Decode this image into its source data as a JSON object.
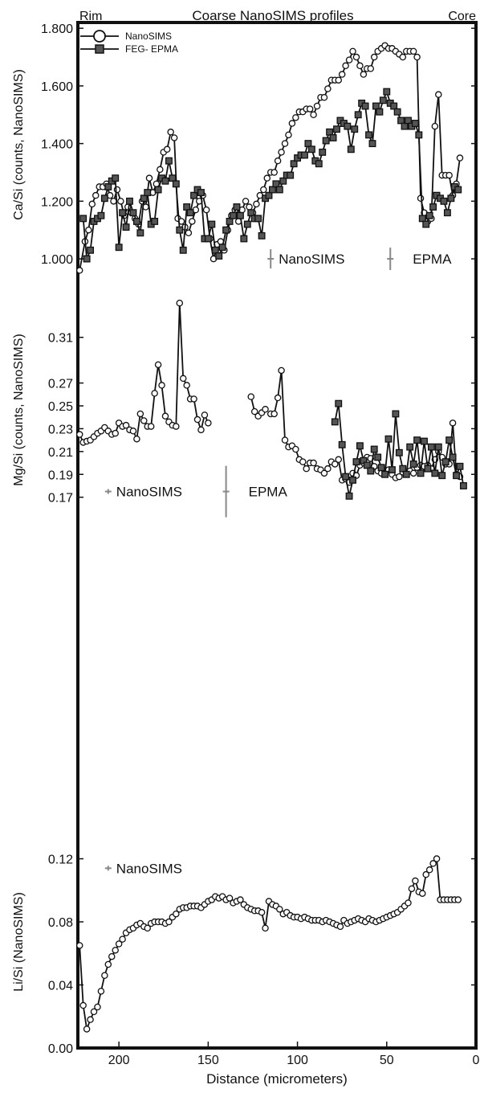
{
  "header": {
    "title": "Coarse NanoSIMS profiles",
    "left_label": "Rim",
    "right_label": "Core"
  },
  "x_axis": {
    "label": "Distance (micrometers)",
    "range": [
      223,
      0
    ],
    "ticks": [
      200,
      150,
      100,
      50,
      0
    ],
    "tick_labels": [
      "200",
      "150",
      "100",
      "50",
      "0"
    ]
  },
  "colors": {
    "axis": "#111111",
    "open_marker_fill": "#ffffff",
    "square_marker_fill": "#555555",
    "error_bar": "#888888"
  },
  "chart_data": [
    {
      "type": "line",
      "panel": "top",
      "ylabel": "Ca/Si (counts, NanoSIMS)",
      "ylim": [
        0.95,
        1.82
      ],
      "yticks": [
        1.0,
        1.2,
        1.4,
        1.6,
        1.8
      ],
      "ytick_labels": [
        "1.000",
        "1.200",
        "1.400",
        "1.600",
        "1.800"
      ],
      "legend": {
        "position": "top-left",
        "entries": [
          "NanoSIMS",
          "FEG- EPMA"
        ]
      },
      "annotations": [
        {
          "text": "NanoSIMS",
          "kind": "error-bar-key",
          "x": 115,
          "y": 1.0
        },
        {
          "text": "EPMA",
          "kind": "error-bar-key",
          "x": 48,
          "y": 1.0
        }
      ],
      "series": [
        {
          "name": "NanoSIMS",
          "marker": "circle",
          "x": [
            222,
            219,
            217,
            215,
            213,
            211,
            209,
            207,
            205,
            203,
            201,
            199,
            197,
            195,
            193,
            191,
            189,
            187,
            185,
            183,
            181,
            179,
            177,
            175,
            173,
            171,
            169,
            167,
            165,
            163,
            161,
            159,
            157,
            155,
            153,
            151,
            149,
            147,
            145,
            143,
            141,
            139,
            137,
            135,
            133,
            131,
            129,
            127,
            125,
            123,
            121,
            119,
            117,
            115,
            113,
            111,
            109,
            107,
            105,
            103,
            101,
            99,
            97,
            95,
            93,
            91,
            89,
            87,
            85,
            83,
            81,
            79,
            77,
            75,
            73,
            71,
            69,
            67,
            65,
            63,
            61,
            59,
            57,
            55,
            53,
            51,
            49,
            47,
            45,
            43,
            41,
            39,
            37,
            35,
            33,
            31,
            29,
            27,
            25,
            23,
            21,
            19,
            17,
            15,
            13,
            11,
            9
          ],
          "y": [
            0.96,
            1.06,
            1.1,
            1.19,
            1.22,
            1.25,
            1.25,
            1.26,
            1.22,
            1.2,
            1.24,
            1.2,
            1.15,
            1.18,
            1.16,
            1.14,
            1.12,
            1.2,
            1.18,
            1.28,
            1.23,
            1.26,
            1.31,
            1.37,
            1.38,
            1.44,
            1.42,
            1.14,
            1.13,
            1.11,
            1.09,
            1.13,
            1.17,
            1.2,
            1.22,
            1.17,
            1.07,
            1.0,
            1.05,
            1.06,
            1.03,
            1.1,
            1.15,
            1.17,
            1.13,
            1.17,
            1.2,
            1.18,
            1.16,
            1.19,
            1.22,
            1.24,
            1.28,
            1.3,
            1.3,
            1.34,
            1.37,
            1.4,
            1.43,
            1.47,
            1.49,
            1.51,
            1.51,
            1.52,
            1.52,
            1.5,
            1.53,
            1.56,
            1.56,
            1.59,
            1.62,
            1.62,
            1.62,
            1.64,
            1.67,
            1.69,
            1.72,
            1.7,
            1.67,
            1.64,
            1.66,
            1.66,
            1.7,
            1.72,
            1.73,
            1.74,
            1.73,
            1.73,
            1.72,
            1.71,
            1.7,
            1.72,
            1.72,
            1.72,
            1.7,
            1.21,
            1.16,
            1.13,
            1.14,
            1.46,
            1.57,
            1.29,
            1.29,
            1.29,
            1.22,
            1.26,
            1.35
          ]
        },
        {
          "name": "FEG- EPMA",
          "marker": "square",
          "x": [
            220,
            218,
            216,
            214,
            212,
            210,
            208,
            206,
            204,
            202,
            200,
            198,
            196,
            194,
            192,
            190,
            188,
            186,
            184,
            182,
            180,
            178,
            176,
            174,
            172,
            170,
            168,
            166,
            164,
            162,
            160,
            158,
            156,
            154,
            152,
            150,
            148,
            146,
            144,
            142,
            140,
            138,
            136,
            134,
            132,
            130,
            128,
            126,
            124,
            122,
            120,
            118,
            116,
            114,
            112,
            110,
            108,
            106,
            104,
            102,
            100,
            98,
            96,
            94,
            92,
            90,
            88,
            86,
            84,
            82,
            80,
            78,
            76,
            74,
            72,
            70,
            68,
            66,
            64,
            62,
            60,
            58,
            56,
            54,
            52,
            50,
            48,
            46,
            44,
            42,
            40,
            38,
            36,
            34,
            32,
            30,
            28,
            26,
            24,
            22,
            20,
            18,
            16,
            14,
            12,
            10
          ],
          "y": [
            1.14,
            1.0,
            1.03,
            1.13,
            1.14,
            1.15,
            1.21,
            1.25,
            1.27,
            1.28,
            1.04,
            1.16,
            1.11,
            1.2,
            1.16,
            1.13,
            1.09,
            1.21,
            1.23,
            1.12,
            1.13,
            1.24,
            1.28,
            1.27,
            1.34,
            1.28,
            1.26,
            1.1,
            1.03,
            1.18,
            1.16,
            1.22,
            1.24,
            1.23,
            1.07,
            1.07,
            1.12,
            1.03,
            1.01,
            1.04,
            1.1,
            1.13,
            1.15,
            1.18,
            1.15,
            1.07,
            1.12,
            1.16,
            1.14,
            1.14,
            1.08,
            1.21,
            1.22,
            1.24,
            1.26,
            1.24,
            1.27,
            1.29,
            1.29,
            1.33,
            1.35,
            1.36,
            1.36,
            1.4,
            1.38,
            1.34,
            1.33,
            1.37,
            1.41,
            1.44,
            1.42,
            1.45,
            1.48,
            1.47,
            1.46,
            1.38,
            1.45,
            1.5,
            1.54,
            1.53,
            1.43,
            1.4,
            1.53,
            1.51,
            1.55,
            1.58,
            1.54,
            1.53,
            1.51,
            1.48,
            1.46,
            1.48,
            1.46,
            1.47,
            1.43,
            1.14,
            1.12,
            1.15,
            1.18,
            1.22,
            1.21,
            1.2,
            1.16,
            1.21,
            1.25,
            1.24
          ]
        }
      ]
    },
    {
      "type": "line",
      "panel": "middle",
      "ylabel": "Mg/Si (counts, NanoSIMS)",
      "ylim": [
        0.155,
        0.345
      ],
      "yticks": [
        0.17,
        0.19,
        0.21,
        0.23,
        0.25,
        0.27,
        0.31
      ],
      "ytick_labels": [
        "0.17",
        "0.19",
        "0.21",
        "0.23",
        "0.25",
        "0.27",
        "0.31"
      ],
      "annotations": [
        {
          "text": "NanoSIMS",
          "kind": "error-bar-key",
          "x": 206,
          "y": 0.175
        },
        {
          "text": "EPMA",
          "kind": "error-bar-key",
          "x": 140,
          "y": 0.175
        }
      ],
      "series": [
        {
          "name": "NanoSIMS",
          "marker": "circle",
          "x": [
            222,
            220,
            218,
            216,
            214,
            212,
            210,
            208,
            206,
            204,
            202,
            200,
            198,
            196,
            194,
            192,
            190,
            188,
            186,
            184,
            182,
            180,
            178,
            176,
            174,
            172,
            170,
            168,
            166,
            164,
            162,
            160,
            158,
            156,
            154,
            152,
            150,
            148,
            146,
            144,
            142,
            140,
            138,
            136,
            134,
            132,
            130,
            null,
            126,
            124,
            122,
            120,
            118,
            null,
            115,
            113,
            111,
            109,
            107,
            105,
            103,
            101,
            99,
            97,
            95,
            93,
            91,
            89,
            87,
            85,
            83,
            81,
            79,
            77,
            75,
            73,
            71,
            69,
            67,
            65,
            63,
            61,
            59,
            57,
            55,
            53,
            51,
            49,
            47,
            45,
            43,
            41,
            39,
            37,
            35,
            33,
            31,
            29,
            27,
            25,
            23,
            21,
            19,
            17,
            15,
            13,
            11,
            9
          ],
          "y": [
            0.225,
            0.218,
            0.219,
            0.22,
            0.223,
            0.226,
            0.228,
            0.231,
            0.228,
            0.225,
            0.226,
            0.235,
            0.232,
            0.233,
            0.229,
            0.228,
            0.221,
            0.243,
            0.237,
            0.232,
            0.232,
            0.261,
            0.286,
            0.268,
            0.241,
            0.236,
            0.233,
            0.232,
            0.34,
            0.274,
            0.268,
            0.256,
            0.256,
            0.238,
            0.229,
            0.242,
            0.235,
            null,
            null,
            null,
            null,
            null,
            null,
            null,
            null,
            null,
            null,
            null,
            0.258,
            0.245,
            0.241,
            0.244,
            0.247,
            null,
            0.243,
            0.243,
            0.257,
            0.281,
            0.22,
            0.214,
            0.215,
            0.212,
            0.203,
            0.201,
            0.195,
            0.2,
            0.2,
            0.195,
            0.194,
            0.191,
            0.195,
            0.201,
            0.199,
            0.203,
            0.185,
            0.186,
            0.183,
            0.191,
            0.189,
            0.198,
            0.2,
            0.205,
            0.204,
            0.197,
            0.193,
            0.191,
            0.192,
            0.194,
            0.19,
            0.187,
            0.188,
            0.192,
            0.19,
            0.193,
            0.191,
            0.196,
            0.198,
            0.197,
            0.198,
            0.195,
            0.203,
            0.21,
            0.205,
            0.199,
            0.199,
            0.235,
            0.19,
            0.188
          ]
        },
        {
          "name": "EPMA",
          "marker": "square",
          "x": [
            79,
            77,
            75,
            73,
            71,
            69,
            67,
            65,
            63,
            61,
            59,
            57,
            55,
            53,
            51,
            49,
            47,
            45,
            43,
            41,
            39,
            37,
            35,
            33,
            31,
            29,
            27,
            25,
            23,
            21,
            19,
            17,
            15,
            13,
            11,
            9,
            7
          ],
          "y": [
            0.236,
            0.252,
            0.216,
            0.188,
            0.171,
            0.185,
            0.201,
            0.215,
            0.202,
            0.198,
            0.193,
            0.212,
            0.205,
            0.196,
            0.19,
            0.221,
            0.194,
            0.243,
            0.209,
            0.195,
            0.19,
            0.214,
            0.199,
            0.22,
            0.191,
            0.219,
            0.195,
            0.214,
            0.191,
            0.214,
            0.189,
            0.201,
            0.22,
            0.205,
            0.189,
            0.197,
            0.18
          ]
        }
      ]
    },
    {
      "type": "line",
      "panel": "bottom",
      "ylabel": "Li/Si (NanoSIMS)",
      "ylim": [
        0,
        0.132
      ],
      "yticks": [
        0,
        0.04,
        0.08,
        0.12
      ],
      "ytick_labels": [
        "0.00",
        "0.04",
        "0.08",
        "0.12"
      ],
      "annotations": [
        {
          "text": "NanoSIMS",
          "kind": "error-bar-key",
          "x": 206,
          "y": 0.114
        }
      ],
      "series": [
        {
          "name": "NanoSIMS",
          "marker": "circle",
          "x": [
            222,
            220,
            218,
            216,
            214,
            212,
            210,
            208,
            206,
            204,
            202,
            200,
            198,
            196,
            194,
            192,
            190,
            188,
            186,
            184,
            182,
            180,
            178,
            176,
            174,
            172,
            170,
            168,
            166,
            164,
            162,
            160,
            158,
            156,
            154,
            152,
            150,
            148,
            146,
            144,
            142,
            140,
            138,
            136,
            134,
            132,
            130,
            128,
            126,
            124,
            122,
            120,
            118,
            116,
            114,
            112,
            110,
            108,
            106,
            104,
            102,
            100,
            98,
            96,
            94,
            92,
            90,
            88,
            86,
            84,
            82,
            80,
            78,
            76,
            74,
            72,
            70,
            68,
            66,
            64,
            62,
            60,
            58,
            56,
            54,
            52,
            50,
            48,
            46,
            44,
            42,
            40,
            38,
            36,
            34,
            32,
            30,
            28,
            26,
            24,
            22,
            20,
            18,
            16,
            14,
            12,
            10
          ],
          "y": [
            0.065,
            0.027,
            0.012,
            0.018,
            0.023,
            0.026,
            0.036,
            0.046,
            0.053,
            0.058,
            0.062,
            0.066,
            0.069,
            0.073,
            0.075,
            0.076,
            0.078,
            0.079,
            0.077,
            0.076,
            0.079,
            0.08,
            0.08,
            0.08,
            0.079,
            0.08,
            0.083,
            0.085,
            0.088,
            0.089,
            0.089,
            0.09,
            0.09,
            0.09,
            0.089,
            0.091,
            0.093,
            0.094,
            0.096,
            0.095,
            0.096,
            0.094,
            0.095,
            0.092,
            0.093,
            0.094,
            0.091,
            0.089,
            0.088,
            0.087,
            0.087,
            0.086,
            0.076,
            0.093,
            0.091,
            0.09,
            0.088,
            0.085,
            0.086,
            0.084,
            0.083,
            0.083,
            0.082,
            0.083,
            0.082,
            0.081,
            0.081,
            0.081,
            0.08,
            0.081,
            0.08,
            0.079,
            0.078,
            0.077,
            0.081,
            0.079,
            0.08,
            0.081,
            0.082,
            0.081,
            0.08,
            0.082,
            0.081,
            0.08,
            0.081,
            0.082,
            0.083,
            0.084,
            0.085,
            0.086,
            0.088,
            0.09,
            0.092,
            0.101,
            0.106,
            0.099,
            0.098,
            0.11,
            0.113,
            0.117,
            0.12,
            0.094,
            0.094,
            0.094,
            0.094,
            0.094,
            0.094
          ]
        }
      ]
    }
  ]
}
